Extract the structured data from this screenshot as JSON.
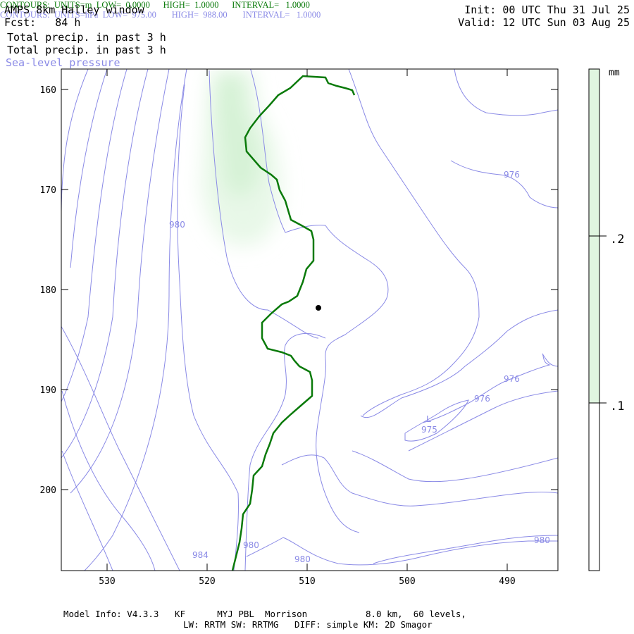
{
  "header": {
    "title": "AMPS 8km Halley window",
    "forecast": "Fcst:   84 h",
    "field_1": "Total precip. in past 3 h",
    "field_2": "Total precip. in past 3 h",
    "field_3": "Sea-level pressure",
    "init": "Init: 00 UTC Thu 31 Jul 25",
    "valid": "Valid: 12 UTC Sun 03 Aug 25"
  },
  "axes": {
    "y_ticks": [
      "160",
      "170",
      "180",
      "190",
      "200"
    ],
    "x_ticks": [
      "530",
      "520",
      "510",
      "500",
      "490"
    ]
  },
  "contour_labels": [
    {
      "text": "980"
    },
    {
      "text": "976"
    },
    {
      "text": "976"
    },
    {
      "text": "976"
    },
    {
      "text": "975"
    },
    {
      "text": "L"
    },
    {
      "text": "980"
    },
    {
      "text": "980"
    },
    {
      "text": "980"
    },
    {
      "text": "984"
    }
  ],
  "colorbar": {
    "unit": "mm",
    "levels": [
      ".2",
      ".1"
    ],
    "colors": [
      "#e0f5e0",
      "#ffffff"
    ]
  },
  "colors": {
    "precip_light": "#e8f8e8",
    "precip_mid": "#d6f2d6",
    "pressure_contour": "#8a8ae6",
    "terrain_contour": "#0a7a0a",
    "station": "#000000"
  },
  "footer": {
    "green_line": "CONTOURS:  UNITS=m  LOW=  0.0000      HIGH=  1.0000      INTERVAL=   1.0000",
    "blue_line": "CONTOURS:  UNITS=hPa  LOW=  975.00       HIGH=  988.00       INTERVAL=   1.0000",
    "model_info": "Model Info: V4.3.3   KF      MYJ PBL  Morrison           8.0 km,  60 levels,",
    "physics": "LW: RRTM SW: RRTMG   DIFF: simple KM: 2D Smagor"
  }
}
